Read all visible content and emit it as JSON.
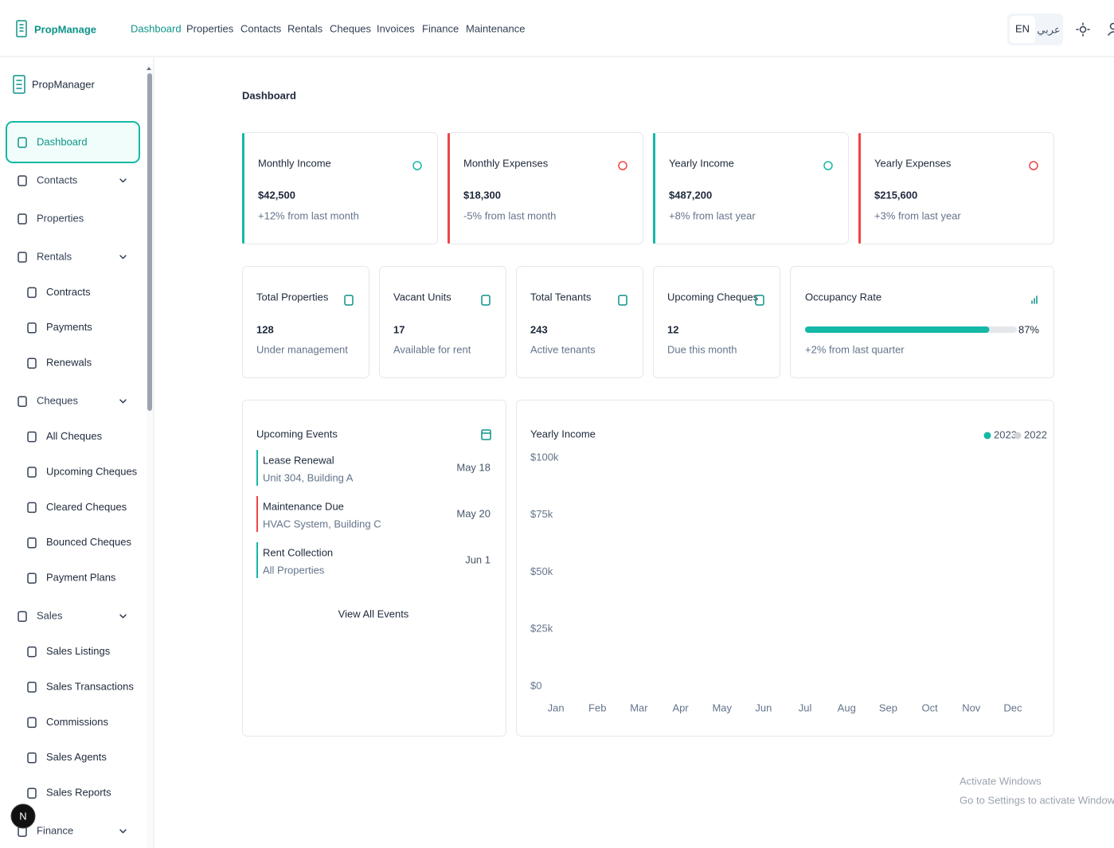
{
  "topnav": {
    "brand": "PropManage",
    "links": [
      {
        "label": "Dashboard",
        "active": true
      },
      {
        "label": "Properties"
      },
      {
        "label": "Contacts"
      },
      {
        "label": "Rentals"
      },
      {
        "label": "Cheques"
      },
      {
        "label": "Invoices"
      },
      {
        "label": "Finance"
      },
      {
        "label": "Maintenance"
      }
    ],
    "languages": [
      "EN",
      "عربي"
    ]
  },
  "sidebar": {
    "brand": "PropManager",
    "items": [
      {
        "label": "Dashboard",
        "active": true
      },
      {
        "label": "Contacts",
        "children": []
      },
      {
        "label": "Properties"
      },
      {
        "label": "Rentals",
        "children": [
          "Contracts",
          "Payments",
          "Renewals"
        ]
      },
      {
        "label": "Cheques",
        "children": [
          "All Cheques",
          "Upcoming Cheques",
          "Cleared Cheques",
          "Bounced Cheques",
          "Payment Plans"
        ]
      },
      {
        "label": "Sales",
        "children": [
          "Sales Listings",
          "Sales Transactions",
          "Commissions",
          "Sales Agents",
          "Sales Reports"
        ]
      },
      {
        "label": "Finance",
        "children": []
      }
    ]
  },
  "page_title": "Dashboard",
  "stats": [
    {
      "title": "Monthly Income",
      "value": "$42,500",
      "note": "+12% from last month",
      "color": "#14b8a6"
    },
    {
      "title": "Monthly Expenses",
      "value": "$18,300",
      "note": "-5% from last month",
      "color": "#ef4444"
    },
    {
      "title": "Yearly Income",
      "value": "$487,200",
      "note": "+8% from last year",
      "color": "#14b8a6"
    },
    {
      "title": "Yearly Expenses",
      "value": "$215,600",
      "note": "+3% from last year",
      "color": "#ef4444"
    }
  ],
  "counters": [
    {
      "title": "Total Properties",
      "value": 128,
      "note": "Under management"
    },
    {
      "title": "Vacant Units",
      "value": 17,
      "note": "Available for rent"
    },
    {
      "title": "Total Tenants",
      "value": 243,
      "note": "Active tenants"
    },
    {
      "title": "Upcoming Cheques",
      "value": 12,
      "note": "Due this month"
    }
  ],
  "occupancy": {
    "title": "Occupancy Rate",
    "value": 87,
    "label": "87%",
    "note": "+2% from last quarter",
    "color": "#14b8a6"
  },
  "events": {
    "title": "Upcoming Events",
    "items": [
      {
        "title": "Lease Renewal",
        "subtitle": "Unit 304, Building A",
        "date": "May 18",
        "color": "#14b8a6"
      },
      {
        "title": "Maintenance Due",
        "subtitle": "HVAC System, Building C",
        "date": "May 20",
        "color": "#ef4444"
      },
      {
        "title": "Rent Collection",
        "subtitle": "All Properties",
        "date": "Jun 1",
        "color": "#14b8a6"
      }
    ],
    "link": "View All Events"
  },
  "chart_data": {
    "type": "bar",
    "title": "Yearly Income",
    "categories": [
      "Jan",
      "Feb",
      "Mar",
      "Apr",
      "May",
      "Jun",
      "Jul",
      "Aug",
      "Sep",
      "Oct",
      "Nov",
      "Dec"
    ],
    "series": [
      {
        "name": "2023",
        "color": "#14b8a6",
        "values": [
          null,
          null,
          null,
          null,
          null,
          null,
          null,
          null,
          null,
          null,
          null,
          null
        ]
      },
      {
        "name": "2022",
        "color": "#d1d5db",
        "values": [
          null,
          null,
          null,
          null,
          null,
          null,
          null,
          null,
          null,
          null,
          null,
          null
        ]
      }
    ],
    "ylim": [
      0,
      100000
    ],
    "yticks": [
      {
        "value": 0,
        "label": "$0"
      },
      {
        "value": 25000,
        "label": "$25k"
      },
      {
        "value": 50000,
        "label": "$50k"
      },
      {
        "value": 75000,
        "label": "$75k"
      },
      {
        "value": 100000,
        "label": "$100k"
      }
    ],
    "grid": false,
    "legend": "top-right"
  },
  "watermark": {
    "title": "Activate Windows",
    "subtitle": "Go to Settings to activate Windows."
  },
  "dev_badge": "N"
}
